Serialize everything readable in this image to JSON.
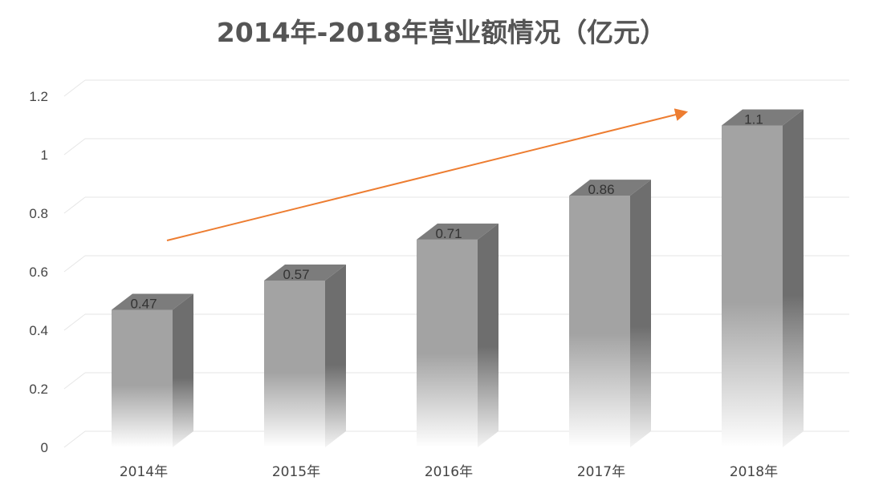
{
  "chart_data": {
    "type": "bar",
    "title": "2014年-2018年营业额情况（亿元）",
    "categories": [
      "2014年",
      "2015年",
      "2016年",
      "2017年",
      "2018年"
    ],
    "values": [
      0.47,
      0.57,
      0.71,
      0.86,
      1.1
    ],
    "data_labels": [
      "0.47",
      "0.57",
      "0.71",
      "0.86",
      "1.1"
    ],
    "yticks": [
      "0",
      "0.2",
      "0.4",
      "0.6",
      "0.8",
      "1",
      "1.2"
    ],
    "ylim": [
      0,
      1.2
    ],
    "xlabel": "",
    "ylabel": "",
    "grid": true,
    "style": "3d-column",
    "colors": {
      "bar_front": "#a3a3a3",
      "bar_side": "#6e6e6e",
      "bar_top": "#7c7c7c",
      "gridline": "#e6e6e6",
      "trend_arrow": "#ed7d31",
      "title": "#555555"
    },
    "annotations": [
      {
        "type": "trend-arrow",
        "direction": "up-right"
      }
    ]
  }
}
